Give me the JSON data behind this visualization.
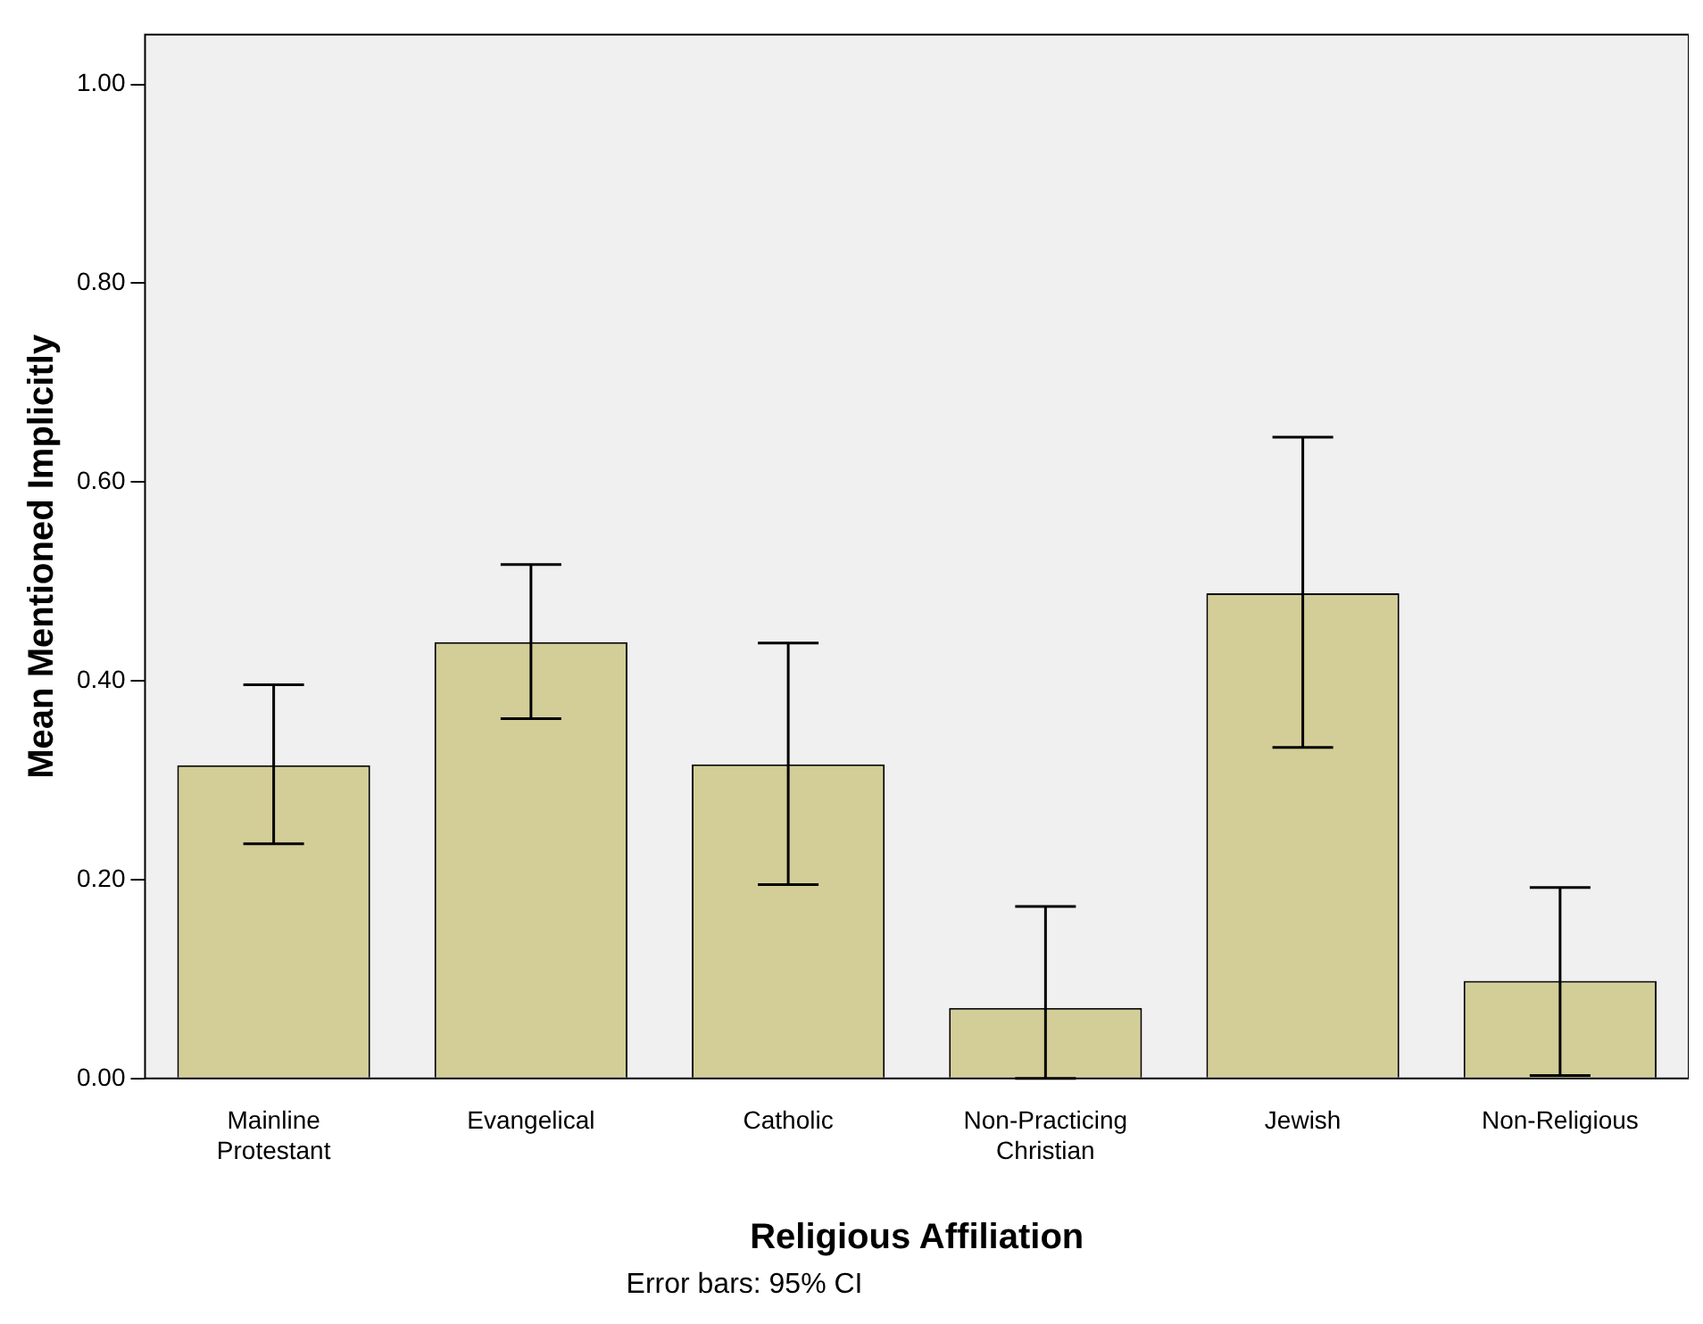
{
  "chart_data": {
    "type": "bar",
    "xlabel": "Religious Affiliation",
    "ylabel": "Mean Mentioned Implicitly",
    "categories": [
      "Mainline Protestant",
      "Evangelical",
      "Catholic",
      "Non-Practicing Christian",
      "Jewish",
      "Non-Religious"
    ],
    "values": [
      0.315,
      0.439,
      0.316,
      0.071,
      0.488,
      0.098
    ],
    "errors": [
      [
        0.236,
        0.396
      ],
      [
        0.362,
        0.517
      ],
      [
        0.195,
        0.438
      ],
      [
        0.0,
        0.173
      ],
      [
        0.333,
        0.645
      ],
      [
        0.003,
        0.192
      ]
    ],
    "color": "#d3ce97",
    "ylim": [
      0,
      1.05
    ],
    "yticks": [
      {
        "value": 0,
        "label": "0.00"
      },
      {
        "value": 0.2,
        "label": "0.20"
      },
      {
        "value": 0.4,
        "label": "0.40"
      },
      {
        "value": 0.6,
        "label": "0.60"
      },
      {
        "value": 0.8,
        "label": "0.80"
      },
      {
        "value": 1,
        "label": "1.00"
      }
    ],
    "grid": false,
    "legend": false,
    "annotations": [
      "Error bars: 95% CI"
    ]
  }
}
